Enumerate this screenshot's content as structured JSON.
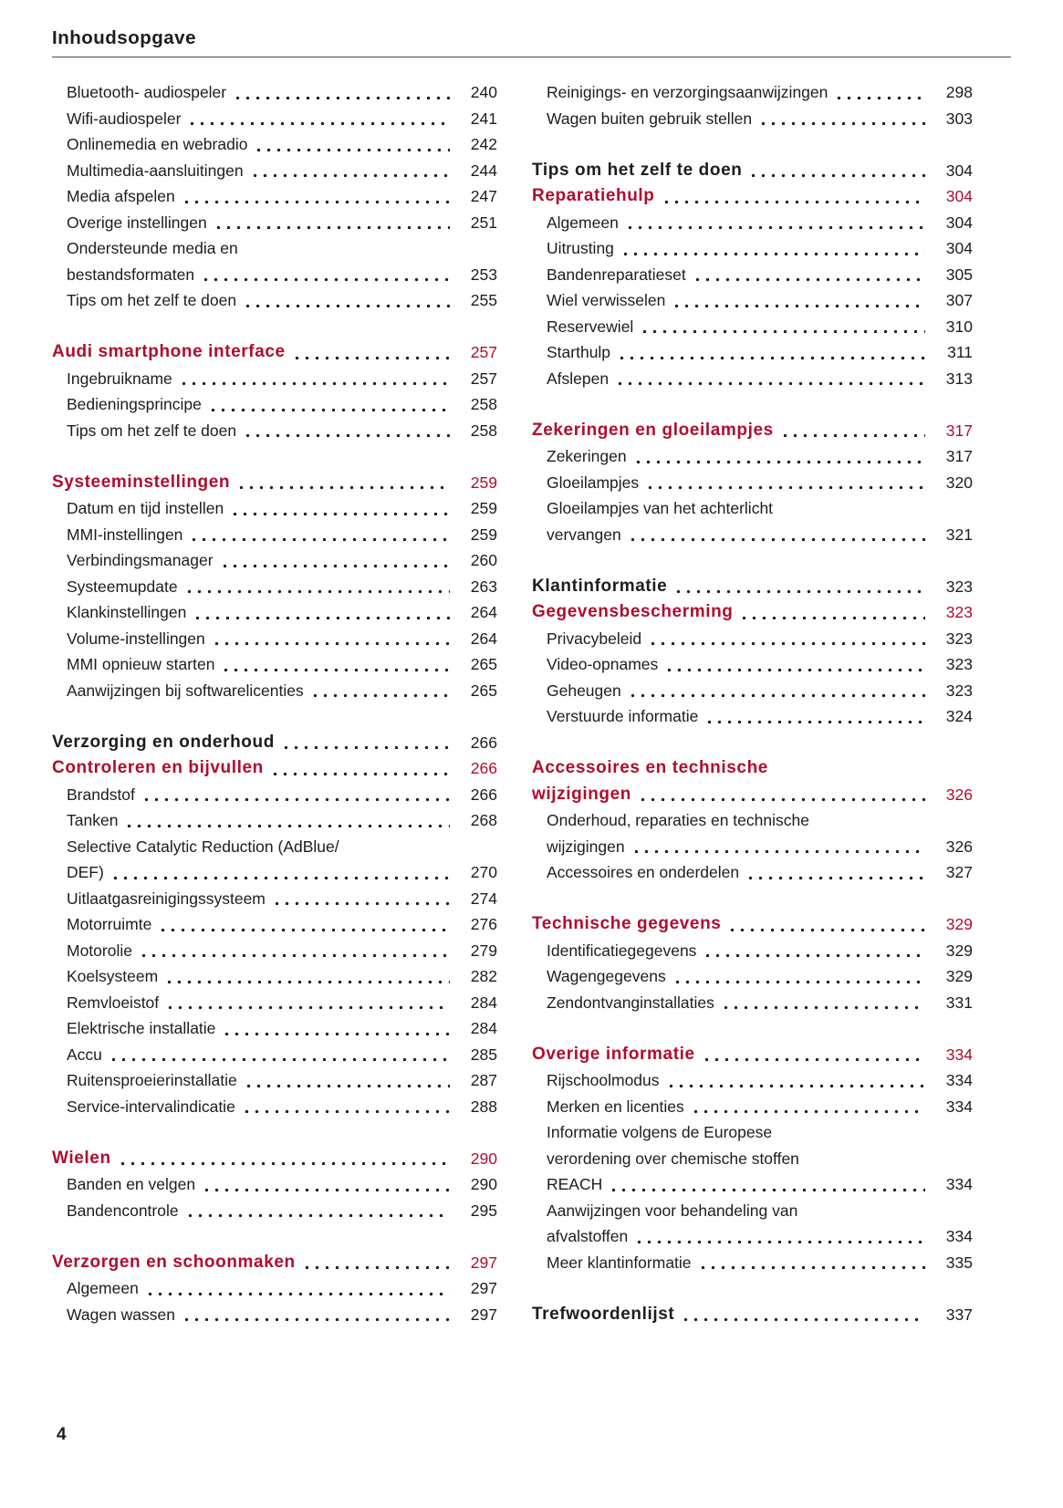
{
  "page": {
    "title": "Inhoudsopgave",
    "footer_page_number": "4",
    "colors": {
      "accent_red": "#b00c2f",
      "text": "#1d1d1b"
    },
    "columns": [
      {
        "groups": [
          {
            "entries": [
              {
                "style": "sub",
                "lines": [
                  "Bluetooth- audiospeler"
                ],
                "page": "240"
              },
              {
                "style": "sub",
                "lines": [
                  "Wifi-audiospeler"
                ],
                "page": "241"
              },
              {
                "style": "sub",
                "lines": [
                  "Onlinemedia en webradio"
                ],
                "page": "242"
              },
              {
                "style": "sub",
                "lines": [
                  "Multimedia-aansluitingen"
                ],
                "page": "244"
              },
              {
                "style": "sub",
                "lines": [
                  "Media afspelen"
                ],
                "page": "247"
              },
              {
                "style": "sub",
                "lines": [
                  "Overige instellingen"
                ],
                "page": "251"
              },
              {
                "style": "sub",
                "lines": [
                  "Ondersteunde media en",
                  "bestandsformaten"
                ],
                "page": "253"
              },
              {
                "style": "sub",
                "lines": [
                  "Tips om het zelf te doen"
                ],
                "page": "255"
              }
            ]
          },
          {
            "entries": [
              {
                "style": "chapter-red",
                "lines": [
                  "Audi smartphone interface"
                ],
                "page": "257"
              },
              {
                "style": "sub",
                "lines": [
                  "Ingebruikname"
                ],
                "page": "257"
              },
              {
                "style": "sub",
                "lines": [
                  "Bedieningsprincipe"
                ],
                "page": "258"
              },
              {
                "style": "sub",
                "lines": [
                  "Tips om het zelf te doen"
                ],
                "page": "258"
              }
            ]
          },
          {
            "entries": [
              {
                "style": "chapter-red",
                "lines": [
                  "Systeeminstellingen"
                ],
                "page": "259"
              },
              {
                "style": "sub",
                "lines": [
                  "Datum en tijd instellen"
                ],
                "page": "259"
              },
              {
                "style": "sub",
                "lines": [
                  "MMI-instellingen"
                ],
                "page": "259"
              },
              {
                "style": "sub",
                "lines": [
                  "Verbindingsmanager"
                ],
                "page": "260"
              },
              {
                "style": "sub",
                "lines": [
                  "Systeemupdate"
                ],
                "page": "263"
              },
              {
                "style": "sub",
                "lines": [
                  "Klankinstellingen"
                ],
                "page": "264"
              },
              {
                "style": "sub",
                "lines": [
                  "Volume-instellingen"
                ],
                "page": "264"
              },
              {
                "style": "sub",
                "lines": [
                  "MMI opnieuw starten"
                ],
                "page": "265"
              },
              {
                "style": "sub",
                "lines": [
                  "Aanwijzingen bij softwarelicenties"
                ],
                "page": "265"
              }
            ]
          },
          {
            "entries": [
              {
                "style": "chapter-black",
                "lines": [
                  "Verzorging en onderhoud"
                ],
                "page": "266"
              },
              {
                "style": "chapter-red",
                "lines": [
                  "Controleren en bijvullen"
                ],
                "page": "266"
              },
              {
                "style": "sub",
                "lines": [
                  "Brandstof"
                ],
                "page": "266"
              },
              {
                "style": "sub",
                "lines": [
                  "Tanken"
                ],
                "page": "268"
              },
              {
                "style": "sub",
                "lines": [
                  "Selective Catalytic Reduction (AdBlue/",
                  "DEF)"
                ],
                "page": "270"
              },
              {
                "style": "sub",
                "lines": [
                  "Uitlaatgasreinigingssysteem"
                ],
                "page": "274"
              },
              {
                "style": "sub",
                "lines": [
                  "Motorruimte"
                ],
                "page": "276"
              },
              {
                "style": "sub",
                "lines": [
                  "Motorolie"
                ],
                "page": "279"
              },
              {
                "style": "sub",
                "lines": [
                  "Koelsysteem"
                ],
                "page": "282"
              },
              {
                "style": "sub",
                "lines": [
                  "Remvloeistof"
                ],
                "page": "284"
              },
              {
                "style": "sub",
                "lines": [
                  "Elektrische installatie"
                ],
                "page": "284"
              },
              {
                "style": "sub",
                "lines": [
                  "Accu"
                ],
                "page": "285"
              },
              {
                "style": "sub",
                "lines": [
                  "Ruitensproeierinstallatie"
                ],
                "page": "287"
              },
              {
                "style": "sub",
                "lines": [
                  "Service-intervalindicatie"
                ],
                "page": "288"
              }
            ]
          },
          {
            "entries": [
              {
                "style": "chapter-red",
                "lines": [
                  "Wielen"
                ],
                "page": "290"
              },
              {
                "style": "sub",
                "lines": [
                  "Banden en velgen"
                ],
                "page": "290"
              },
              {
                "style": "sub",
                "lines": [
                  "Bandencontrole"
                ],
                "page": "295"
              }
            ]
          },
          {
            "entries": [
              {
                "style": "chapter-red",
                "lines": [
                  "Verzorgen en schoonmaken"
                ],
                "page": "297"
              },
              {
                "style": "sub",
                "lines": [
                  "Algemeen"
                ],
                "page": "297"
              },
              {
                "style": "sub",
                "lines": [
                  "Wagen wassen"
                ],
                "page": "297"
              }
            ]
          }
        ]
      },
      {
        "groups": [
          {
            "entries": [
              {
                "style": "sub",
                "lines": [
                  "Reinigings- en verzorgingsaanwijzingen"
                ],
                "page": "298"
              },
              {
                "style": "sub",
                "lines": [
                  "Wagen buiten gebruik stellen"
                ],
                "page": "303"
              }
            ]
          },
          {
            "entries": [
              {
                "style": "chapter-black",
                "lines": [
                  "Tips om het zelf te doen"
                ],
                "page": "304"
              },
              {
                "style": "chapter-red",
                "lines": [
                  "Reparatiehulp"
                ],
                "page": "304"
              },
              {
                "style": "sub",
                "lines": [
                  "Algemeen"
                ],
                "page": "304"
              },
              {
                "style": "sub",
                "lines": [
                  "Uitrusting"
                ],
                "page": "304"
              },
              {
                "style": "sub",
                "lines": [
                  "Bandenreparatieset"
                ],
                "page": "305"
              },
              {
                "style": "sub",
                "lines": [
                  "Wiel verwisselen"
                ],
                "page": "307"
              },
              {
                "style": "sub",
                "lines": [
                  "Reservewiel"
                ],
                "page": "310"
              },
              {
                "style": "sub",
                "lines": [
                  "Starthulp"
                ],
                "page": "311"
              },
              {
                "style": "sub",
                "lines": [
                  "Afslepen"
                ],
                "page": "313"
              }
            ]
          },
          {
            "entries": [
              {
                "style": "chapter-red",
                "lines": [
                  "Zekeringen en gloeilampjes"
                ],
                "page": "317"
              },
              {
                "style": "sub",
                "lines": [
                  "Zekeringen"
                ],
                "page": "317"
              },
              {
                "style": "sub",
                "lines": [
                  "Gloeilampjes"
                ],
                "page": "320"
              },
              {
                "style": "sub",
                "lines": [
                  "Gloeilampjes van het achterlicht",
                  "vervangen"
                ],
                "page": "321"
              }
            ]
          },
          {
            "entries": [
              {
                "style": "chapter-black",
                "lines": [
                  "Klantinformatie"
                ],
                "page": "323"
              },
              {
                "style": "chapter-red",
                "lines": [
                  "Gegevensbescherming"
                ],
                "page": "323"
              },
              {
                "style": "sub",
                "lines": [
                  "Privacybeleid"
                ],
                "page": "323"
              },
              {
                "style": "sub",
                "lines": [
                  "Video-opnames"
                ],
                "page": "323"
              },
              {
                "style": "sub",
                "lines": [
                  "Geheugen"
                ],
                "page": "323"
              },
              {
                "style": "sub",
                "lines": [
                  "Verstuurde informatie"
                ],
                "page": "324"
              }
            ]
          },
          {
            "entries": [
              {
                "style": "chapter-red",
                "lines": [
                  "Accessoires en technische",
                  "wijzigingen"
                ],
                "page": "326"
              },
              {
                "style": "sub",
                "lines": [
                  "Onderhoud, reparaties en technische",
                  "wijzigingen"
                ],
                "page": "326"
              },
              {
                "style": "sub",
                "lines": [
                  "Accessoires en onderdelen"
                ],
                "page": "327"
              }
            ]
          },
          {
            "entries": [
              {
                "style": "chapter-red",
                "lines": [
                  "Technische gegevens"
                ],
                "page": "329"
              },
              {
                "style": "sub",
                "lines": [
                  "Identificatiegegevens"
                ],
                "page": "329"
              },
              {
                "style": "sub",
                "lines": [
                  "Wagengegevens"
                ],
                "page": "329"
              },
              {
                "style": "sub",
                "lines": [
                  "Zendontvanginstallaties"
                ],
                "page": "331"
              }
            ]
          },
          {
            "entries": [
              {
                "style": "chapter-red",
                "lines": [
                  "Overige informatie"
                ],
                "page": "334"
              },
              {
                "style": "sub",
                "lines": [
                  "Rijschoolmodus"
                ],
                "page": "334"
              },
              {
                "style": "sub",
                "lines": [
                  "Merken en licenties"
                ],
                "page": "334"
              },
              {
                "style": "sub",
                "lines": [
                  "Informatie volgens de Europese",
                  "verordening over chemische stoffen",
                  "REACH"
                ],
                "page": "334"
              },
              {
                "style": "sub",
                "lines": [
                  "Aanwijzingen voor behandeling van",
                  "afvalstoffen"
                ],
                "page": "334"
              },
              {
                "style": "sub",
                "lines": [
                  "Meer klantinformatie"
                ],
                "page": "335"
              }
            ]
          },
          {
            "entries": [
              {
                "style": "chapter-black",
                "lines": [
                  "Trefwoordenlijst"
                ],
                "page": "337"
              }
            ]
          }
        ]
      }
    ]
  }
}
